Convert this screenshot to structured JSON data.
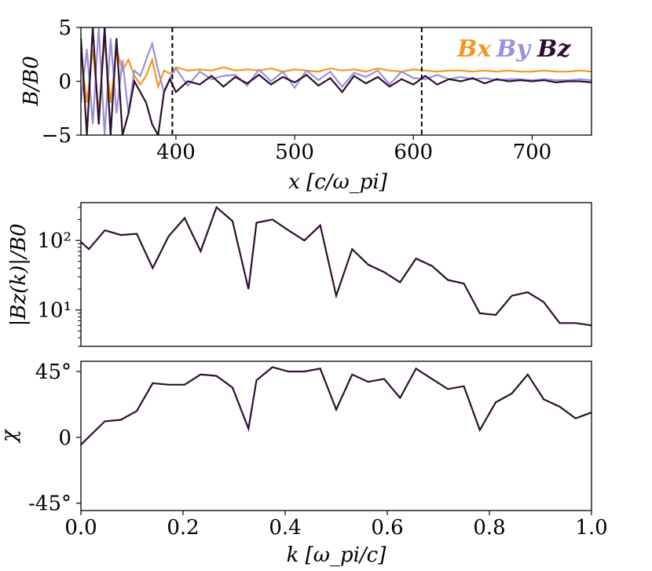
{
  "chart_data": [
    {
      "type": "line",
      "xlabel": "x [c/ω_pi]",
      "ylabel": "B/B0",
      "xlim": [
        320,
        750
      ],
      "ylim": [
        -5,
        5
      ],
      "xticks": [
        "400",
        "500",
        "600",
        "700"
      ],
      "yticks": [
        "5",
        "0",
        "−5"
      ],
      "vlines": [
        397,
        607
      ],
      "legend": {
        "placement": "top-right",
        "entries": [
          "Bx",
          "By",
          "Bz"
        ]
      },
      "series": [
        {
          "name": "Bx",
          "x": [
            320,
            325,
            330,
            335,
            340,
            345,
            350,
            355,
            360,
            365,
            370,
            375,
            380,
            385,
            390,
            395,
            400,
            410,
            420,
            430,
            440,
            450,
            460,
            470,
            480,
            490,
            500,
            510,
            520,
            530,
            540,
            550,
            560,
            570,
            580,
            590,
            600,
            610,
            620,
            630,
            640,
            650,
            660,
            670,
            680,
            690,
            700,
            710,
            720,
            730,
            740,
            750
          ],
          "y": [
            2.5,
            -2,
            3,
            -3,
            4,
            -2,
            3,
            1,
            2,
            0.5,
            -0.3,
            0.5,
            2,
            -0.5,
            1,
            0.7,
            1.3,
            1.0,
            1.1,
            1.0,
            1.3,
            1.0,
            1.1,
            1.0,
            1.2,
            0.9,
            1.1,
            1.0,
            0.9,
            1.2,
            1.0,
            1.1,
            0.9,
            1.2,
            1.0,
            0.9,
            1.1,
            1.0,
            0.9,
            1.0,
            1.0,
            0.9,
            1.0,
            0.9,
            1.0,
            0.9,
            0.9,
            1.0,
            0.9,
            0.9,
            1.0,
            0.9
          ]
        },
        {
          "name": "By",
          "x": [
            320,
            325,
            330,
            335,
            340,
            345,
            350,
            355,
            360,
            365,
            370,
            375,
            380,
            385,
            390,
            395,
            400,
            410,
            420,
            430,
            440,
            450,
            460,
            470,
            480,
            490,
            500,
            510,
            520,
            530,
            540,
            550,
            560,
            570,
            580,
            590,
            600,
            610,
            620,
            630,
            640,
            650,
            660,
            670,
            680,
            690,
            700,
            710,
            720,
            730,
            740,
            750
          ],
          "y": [
            -2,
            3,
            -4,
            5,
            -5,
            4,
            -3,
            2,
            -3,
            1,
            0.5,
            2,
            3.5,
            1,
            -1,
            0.3,
            1.2,
            -0.4,
            0.9,
            0.2,
            0.5,
            0.6,
            -0.4,
            1.1,
            0.0,
            0.9,
            -0.6,
            1.0,
            0.1,
            0.9,
            -0.5,
            0.8,
            0.4,
            1.0,
            -0.3,
            0.9,
            0.3,
            0.2,
            0.6,
            0.2,
            0.4,
            0.2,
            0.3,
            0.1,
            0.2,
            0.2,
            0.1,
            0.2,
            0.1,
            0.1,
            0.2,
            0.1
          ]
        },
        {
          "name": "Bz",
          "x": [
            320,
            325,
            330,
            335,
            340,
            345,
            350,
            355,
            360,
            365,
            370,
            375,
            380,
            385,
            390,
            395,
            400,
            410,
            420,
            430,
            440,
            450,
            460,
            470,
            480,
            490,
            500,
            510,
            520,
            530,
            540,
            550,
            560,
            570,
            580,
            590,
            600,
            610,
            620,
            630,
            640,
            650,
            660,
            670,
            680,
            690,
            700,
            710,
            720,
            730,
            740,
            750
          ],
          "y": [
            4,
            -5,
            5,
            -4,
            5,
            -5,
            4,
            -5,
            -3,
            0,
            -1,
            -2,
            -4,
            -5,
            -1,
            0.2,
            -1.0,
            0.0,
            -0.3,
            0.5,
            -0.5,
            0.4,
            -0.2,
            0.6,
            -0.3,
            0.4,
            -0.1,
            0.6,
            -0.4,
            0.3,
            -1.0,
            0.5,
            -0.2,
            0.4,
            -0.5,
            0.2,
            -0.3,
            0.5,
            -0.3,
            0.2,
            0.0,
            0.3,
            -0.2,
            0.2,
            0.0,
            0.1,
            0.0,
            0.1,
            -0.1,
            0.0,
            0.0,
            -0.1
          ]
        }
      ]
    },
    {
      "type": "line",
      "xlabel": "",
      "ylabel": "|Bz(k)|/B0",
      "yscale": "log",
      "xlim": [
        0,
        1
      ],
      "ylim": [
        3,
        350
      ],
      "yticks": [
        "10²",
        "10¹"
      ],
      "series": [
        {
          "x": [
            0.0,
            0.0156,
            0.0469,
            0.0781,
            0.1094,
            0.1406,
            0.1719,
            0.2031,
            0.2344,
            0.2656,
            0.2969,
            0.3281,
            0.3438,
            0.375,
            0.4063,
            0.4375,
            0.4688,
            0.5,
            0.5313,
            0.5625,
            0.5938,
            0.625,
            0.6563,
            0.6875,
            0.7188,
            0.75,
            0.7813,
            0.8125,
            0.8438,
            0.875,
            0.9063,
            0.9375,
            0.9688,
            1.0
          ],
          "y": [
            95,
            75,
            140,
            120,
            125,
            40,
            115,
            210,
            70,
            300,
            190,
            20,
            180,
            200,
            140,
            100,
            165,
            16,
            75,
            45,
            35,
            25,
            55,
            43,
            27,
            24,
            9,
            8.5,
            16,
            18,
            13,
            6.5,
            6.5,
            6.0
          ]
        }
      ]
    },
    {
      "type": "line",
      "xlabel": "k [ω_pi/c]",
      "ylabel": "χ",
      "xlim": [
        0,
        1
      ],
      "ylim": [
        -50,
        52
      ],
      "xticks": [
        "0.0",
        "0.2",
        "0.4",
        "0.6",
        "0.8",
        "1.0"
      ],
      "yticks": [
        "45°",
        "0",
        "-45°"
      ],
      "series": [
        {
          "x": [
            0.0,
            0.0469,
            0.0781,
            0.1094,
            0.1406,
            0.1719,
            0.2031,
            0.2344,
            0.2656,
            0.2969,
            0.3281,
            0.3438,
            0.375,
            0.4063,
            0.4375,
            0.4688,
            0.5,
            0.5313,
            0.5625,
            0.5938,
            0.625,
            0.6563,
            0.6875,
            0.7188,
            0.75,
            0.7813,
            0.8125,
            0.8438,
            0.875,
            0.9063,
            0.9375,
            0.9688,
            1.0
          ],
          "y": [
            -5,
            11,
            12,
            18,
            37,
            36,
            36,
            43,
            42,
            34,
            6,
            39,
            48,
            45,
            45,
            47,
            19,
            43,
            38,
            40,
            27,
            47,
            40,
            33,
            35,
            5,
            24,
            30,
            43,
            26,
            21,
            13,
            17
          ]
        }
      ]
    }
  ]
}
